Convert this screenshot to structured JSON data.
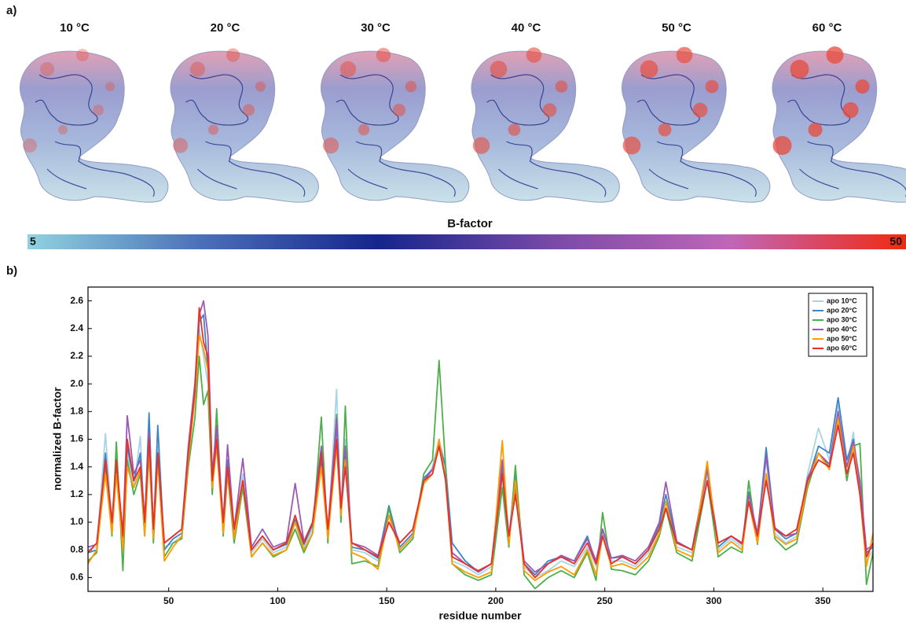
{
  "panel_a": {
    "label": "a)",
    "temperatures": [
      "10 °C",
      "20 °C",
      "30 °C",
      "40 °C",
      "50 °C",
      "60 °C"
    ],
    "colorbar": {
      "title": "B-factor",
      "min": 5,
      "max": 50,
      "colors": [
        "#8fd3df",
        "#4a6fb8",
        "#15258c",
        "#7a4aa8",
        "#c066b8",
        "#f02a10"
      ]
    }
  },
  "panel_b_label": "b)",
  "chart_data": {
    "type": "line",
    "x_label": "residue number",
    "y_label": "normalized B-factor",
    "xlim": [
      13,
      373
    ],
    "ylim": [
      0.5,
      2.7
    ],
    "xticks": [
      50,
      100,
      150,
      200,
      250,
      300,
      350
    ],
    "yticks": [
      0.6,
      0.8,
      {
        "value": 1,
        "label": "1.0"
      },
      1.2,
      1.4,
      1.6,
      1.8,
      {
        "value": 2,
        "label": "2.0"
      },
      2.2,
      2.4,
      2.6
    ],
    "legend": "upper right",
    "x": [
      13,
      17,
      21,
      24,
      26,
      29,
      31,
      34,
      37,
      39,
      41,
      43,
      45,
      48,
      52,
      56,
      59,
      62,
      64,
      66,
      68,
      70,
      72,
      75,
      77,
      80,
      84,
      88,
      93,
      98,
      104,
      108,
      112,
      116,
      120,
      123,
      127,
      129,
      131,
      134,
      140,
      146,
      151,
      156,
      162,
      167,
      171,
      174,
      177,
      180,
      186,
      192,
      198,
      203,
      206,
      209,
      213,
      218,
      224,
      230,
      236,
      242,
      246,
      249,
      253,
      258,
      264,
      270,
      275,
      278,
      283,
      290,
      297,
      302,
      308,
      313,
      316,
      320,
      324,
      328,
      333,
      338,
      343,
      348,
      353,
      357,
      361,
      364,
      367,
      370,
      373
    ],
    "series": [
      {
        "name": "apo 10°C",
        "color": "#a8d4e6",
        "values": [
          0.8,
          0.82,
          1.64,
          1.0,
          1.5,
          0.85,
          1.5,
          1.25,
          1.62,
          0.95,
          1.75,
          0.9,
          1.55,
          0.82,
          0.85,
          0.9,
          1.45,
          1.9,
          2.4,
          2.2,
          2.0,
          1.3,
          1.65,
          0.95,
          1.4,
          0.9,
          1.35,
          0.78,
          0.88,
          0.78,
          0.82,
          1.0,
          0.82,
          0.95,
          1.5,
          0.9,
          1.96,
          1.1,
          1.6,
          0.8,
          0.78,
          0.72,
          1.05,
          0.8,
          0.9,
          1.3,
          1.4,
          1.6,
          1.35,
          0.72,
          0.68,
          0.62,
          0.68,
          1.3,
          0.85,
          1.3,
          0.68,
          0.6,
          0.65,
          0.72,
          0.68,
          0.82,
          0.68,
          0.92,
          0.72,
          0.72,
          0.68,
          0.78,
          0.95,
          1.15,
          0.82,
          0.78,
          1.35,
          0.8,
          0.88,
          0.82,
          1.2,
          0.88,
          1.45,
          0.92,
          0.85,
          0.9,
          1.35,
          1.68,
          1.45,
          1.85,
          1.4,
          1.65,
          1.2,
          0.72,
          0.8
        ]
      },
      {
        "name": "apo 20°C",
        "color": "#3d85c6",
        "values": [
          0.78,
          0.8,
          1.5,
          0.95,
          1.45,
          0.88,
          1.55,
          1.3,
          1.5,
          0.98,
          1.79,
          0.92,
          1.7,
          0.8,
          0.88,
          0.92,
          1.5,
          1.95,
          2.45,
          2.5,
          2.1,
          1.25,
          1.7,
          0.98,
          1.45,
          0.88,
          1.3,
          0.8,
          0.9,
          0.8,
          0.84,
          1.02,
          0.84,
          0.98,
          1.45,
          0.92,
          1.7,
          1.05,
          1.5,
          0.82,
          0.8,
          0.74,
          1.12,
          0.82,
          0.92,
          1.32,
          1.38,
          1.58,
          1.4,
          0.85,
          0.72,
          0.64,
          0.7,
          1.4,
          0.88,
          1.35,
          0.7,
          0.62,
          0.72,
          0.75,
          0.72,
          0.9,
          0.7,
          0.95,
          0.74,
          0.75,
          0.7,
          0.8,
          0.98,
          1.2,
          0.85,
          0.8,
          1.4,
          0.82,
          0.9,
          0.84,
          1.22,
          0.9,
          1.54,
          0.95,
          0.88,
          0.92,
          1.3,
          1.55,
          1.5,
          1.9,
          1.45,
          1.6,
          1.25,
          0.78,
          0.82
        ]
      },
      {
        "name": "apo 30°C",
        "color": "#4daf4a",
        "values": [
          0.72,
          0.78,
          1.4,
          0.9,
          1.58,
          0.65,
          1.45,
          1.2,
          1.35,
          0.9,
          1.55,
          0.85,
          1.45,
          0.75,
          0.85,
          0.88,
          1.4,
          1.75,
          2.2,
          1.85,
          1.95,
          1.2,
          1.82,
          0.9,
          1.35,
          0.85,
          1.25,
          0.75,
          0.85,
          0.75,
          0.8,
          0.95,
          0.78,
          0.92,
          1.76,
          0.85,
          1.78,
          1.0,
          1.84,
          0.7,
          0.72,
          0.68,
          1.1,
          0.78,
          0.88,
          1.35,
          1.45,
          2.17,
          1.4,
          0.7,
          0.62,
          0.58,
          0.62,
          1.25,
          0.82,
          1.41,
          0.62,
          0.52,
          0.6,
          0.65,
          0.6,
          0.78,
          0.58,
          1.07,
          0.66,
          0.65,
          0.62,
          0.72,
          0.9,
          1.1,
          0.78,
          0.72,
          1.3,
          0.75,
          0.82,
          0.78,
          1.3,
          0.84,
          1.35,
          0.88,
          0.8,
          0.85,
          1.25,
          1.5,
          1.4,
          1.75,
          1.3,
          1.55,
          1.57,
          0.55,
          0.78
        ]
      },
      {
        "name": "apo 40°C",
        "color": "#9b59b6",
        "values": [
          0.82,
          0.84,
          1.45,
          1.0,
          1.4,
          0.92,
          1.77,
          1.35,
          1.45,
          1.02,
          1.65,
          0.95,
          1.5,
          0.85,
          0.9,
          0.95,
          1.55,
          2.0,
          2.5,
          2.6,
          2.35,
          1.35,
          1.7,
          1.0,
          1.56,
          0.95,
          1.46,
          0.82,
          0.95,
          0.82,
          0.86,
          1.28,
          0.86,
          1.0,
          1.55,
          0.95,
          1.75,
          1.1,
          1.55,
          0.85,
          0.82,
          0.76,
          1.05,
          0.85,
          0.95,
          1.3,
          1.38,
          1.55,
          1.32,
          0.78,
          0.7,
          0.64,
          0.7,
          1.45,
          0.9,
          1.25,
          0.72,
          0.64,
          0.7,
          0.76,
          0.72,
          0.88,
          0.72,
          0.95,
          0.74,
          0.76,
          0.72,
          0.82,
          1.0,
          1.29,
          0.86,
          0.8,
          1.38,
          0.85,
          0.9,
          0.84,
          1.2,
          0.92,
          1.48,
          0.96,
          0.9,
          0.92,
          1.32,
          1.5,
          1.42,
          1.8,
          1.4,
          1.58,
          1.3,
          0.8,
          0.84
        ]
      },
      {
        "name": "apo 50°C",
        "color": "#ff9a00",
        "values": [
          0.7,
          0.8,
          1.35,
          0.92,
          1.35,
          0.8,
          1.4,
          1.25,
          1.38,
          0.9,
          1.5,
          0.88,
          1.45,
          0.72,
          0.82,
          0.9,
          1.45,
          1.9,
          2.35,
          2.25,
          2.1,
          1.25,
          1.55,
          0.92,
          1.38,
          0.88,
          1.3,
          0.75,
          0.85,
          0.76,
          0.8,
          1.0,
          0.8,
          0.92,
          1.4,
          0.88,
          1.55,
          1.05,
          1.45,
          0.78,
          0.74,
          0.66,
          1.05,
          0.8,
          0.9,
          1.28,
          1.35,
          1.6,
          1.3,
          0.7,
          0.64,
          0.6,
          0.64,
          1.59,
          0.84,
          1.3,
          0.65,
          0.58,
          0.64,
          0.68,
          0.62,
          0.8,
          0.62,
          0.9,
          0.68,
          0.7,
          0.66,
          0.75,
          0.92,
          1.15,
          0.8,
          0.75,
          1.44,
          0.78,
          0.86,
          0.8,
          1.15,
          0.85,
          1.35,
          0.9,
          0.84,
          0.88,
          1.28,
          1.5,
          1.38,
          1.75,
          1.35,
          1.55,
          1.2,
          0.68,
          0.92
        ]
      },
      {
        "name": "apo 60°C",
        "color": "#e8302a",
        "values": [
          0.78,
          0.85,
          1.45,
          1.0,
          1.45,
          0.9,
          1.6,
          1.3,
          1.4,
          1.0,
          1.6,
          0.95,
          1.5,
          0.85,
          0.9,
          0.95,
          1.5,
          1.95,
          2.55,
          2.3,
          2.2,
          1.3,
          1.6,
          1.0,
          1.4,
          0.95,
          1.3,
          0.8,
          0.9,
          0.8,
          0.85,
          1.05,
          0.85,
          1.0,
          1.5,
          0.95,
          1.6,
          1.1,
          1.4,
          0.85,
          0.8,
          0.75,
          1.0,
          0.85,
          0.95,
          1.3,
          1.35,
          1.55,
          1.3,
          0.75,
          0.7,
          0.65,
          0.7,
          1.35,
          0.9,
          1.2,
          0.7,
          0.6,
          0.7,
          0.75,
          0.7,
          0.85,
          0.7,
          0.9,
          0.7,
          0.75,
          0.7,
          0.8,
          0.95,
          1.1,
          0.85,
          0.8,
          1.3,
          0.85,
          0.9,
          0.85,
          1.15,
          0.9,
          1.3,
          0.95,
          0.9,
          0.95,
          1.3,
          1.45,
          1.4,
          1.7,
          1.35,
          1.5,
          1.2,
          0.75,
          0.85
        ]
      }
    ]
  }
}
